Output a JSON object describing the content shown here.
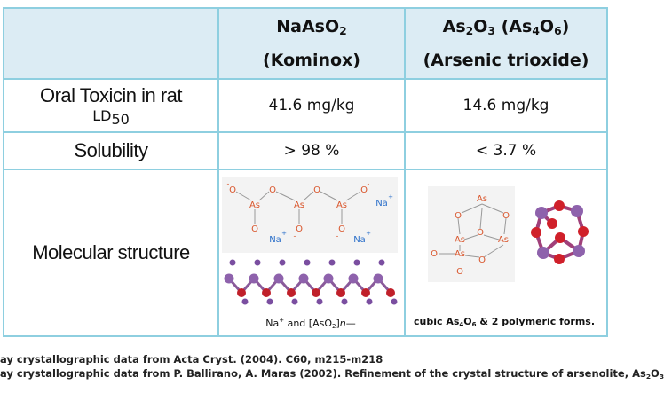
{
  "table": {
    "header": [
      {
        "line1": [
          "NaAsO",
          "2"
        ],
        "line2": "(Kominox)"
      },
      {
        "line1": [
          "As",
          "2",
          "O",
          "3",
          " (As",
          "4",
          "O",
          "6",
          ")"
        ],
        "line2": "(Arsenic trioxide)"
      }
    ],
    "rows": [
      {
        "label": "Oral Toxicin in rat",
        "sublabel": [
          "LD",
          "50"
        ],
        "cells": [
          "41.6 mg/kg",
          "14.6 mg/kg"
        ]
      },
      {
        "label": "Solubility",
        "cells": [
          "> 98 %",
          "< 3.7 %"
        ]
      },
      {
        "label": "Molecular structure",
        "figures": [
          {
            "atoms": {
              "o": "O",
              "as": "As",
              "na": "Na",
              "plus": "+",
              "minus": "-"
            },
            "caption": [
              "Na",
              "+",
              " and [AsO",
              "2",
              "]",
              "n",
              "—"
            ]
          },
          {
            "atoms": {
              "o": "O",
              "as": "As"
            },
            "caption": [
              "cubic As",
              "4",
              "O",
              "6",
              " & 2 polymeric forms."
            ]
          }
        ]
      }
    ]
  },
  "footnotes": [
    [
      "ay crystallographic data from Acta Cryst. (2004). C60, m215-m218"
    ],
    [
      "ay crystallographic data from P. Ballirano, A. Maras (2002). Refinement of the crystal structure of arsenolite, As",
      "2",
      "O",
      "3"
    ]
  ]
}
